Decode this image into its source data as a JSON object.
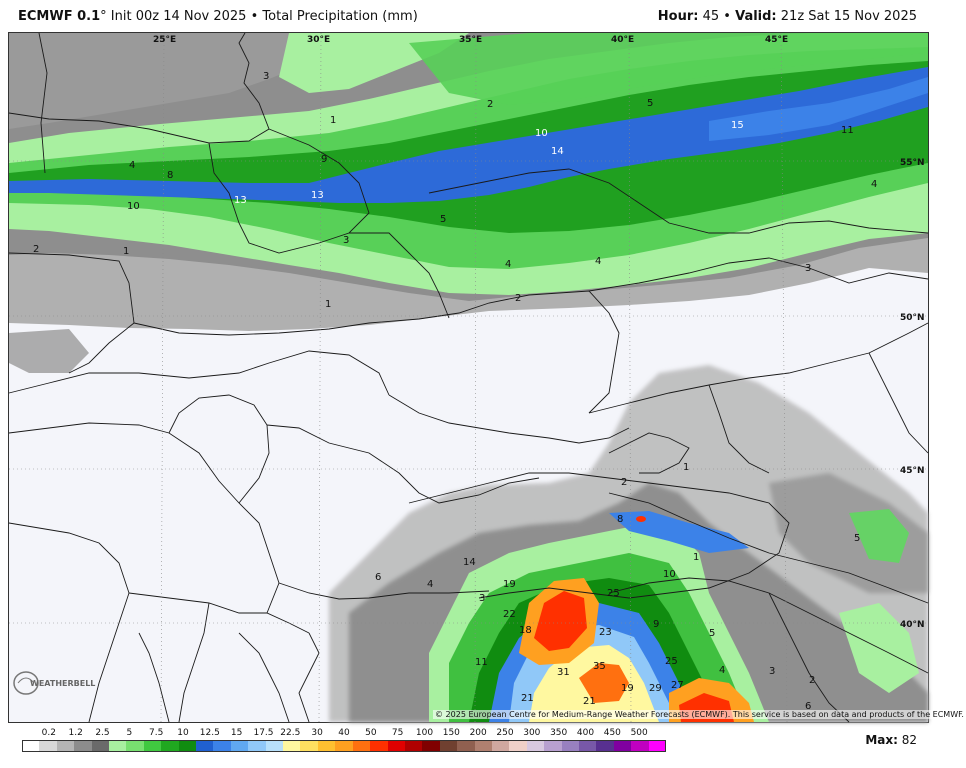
{
  "header": {
    "model": "ECMWF 0.1",
    "degree": "°",
    "init": "Init 00z 14 Nov 2025",
    "sep": "•",
    "field": "Total Precipitation (mm)",
    "hour_label": "Hour:",
    "hour_value": "45",
    "valid_label": "Valid:",
    "valid_value": "21z Sat 15 Nov 2025"
  },
  "lon_labels": [
    "25°E",
    "30°E",
    "35°E",
    "40°E",
    "45°E"
  ],
  "lat_labels": [
    "55°N",
    "50°N",
    "45°N",
    "40°N"
  ],
  "contour_labels": [
    "3",
    "1",
    "4",
    "8",
    "10",
    "13",
    "13",
    "9",
    "10",
    "14",
    "15",
    "11",
    "5",
    "2",
    "5",
    "3",
    "4",
    "4",
    "2",
    "1",
    "2",
    "1",
    "2",
    "1",
    "8",
    "6",
    "4",
    "14",
    "19",
    "3",
    "22",
    "18",
    "25",
    "23",
    "9",
    "5",
    "11",
    "31",
    "35",
    "25",
    "4",
    "3",
    "21",
    "21",
    "19",
    "29",
    "27",
    "6",
    "10",
    "1",
    "4",
    "3",
    "5",
    "2"
  ],
  "credit": "© 2025 European Centre for Medium-Range Weather Forecasts (ECMWF). This service is based on data and products of the ECMWF.",
  "legend": {
    "ticks": [
      "0.2",
      "1.2",
      "2.5",
      "5",
      "7.5",
      "10",
      "12.5",
      "15",
      "17.5",
      "22.5",
      "30",
      "40",
      "50",
      "75",
      "100",
      "150",
      "200",
      "250",
      "300",
      "350",
      "400",
      "450",
      "500"
    ],
    "colors": [
      "#ffffff",
      "#d8d8d8",
      "#b4b4b4",
      "#8c8c8c",
      "#6a6a6a",
      "#a8f0a0",
      "#78e070",
      "#40c840",
      "#20a820",
      "#108c10",
      "#2060d0",
      "#3c82e8",
      "#60a8f0",
      "#90c8f8",
      "#b8e0fa",
      "#fff8a0",
      "#ffe060",
      "#ffc030",
      "#ffa020",
      "#ff7010",
      "#ff3000",
      "#e00000",
      "#b00000",
      "#800000",
      "#704030",
      "#906050",
      "#b08070",
      "#d0a8a0",
      "#f0d0c8",
      "#d8c8e0",
      "#b8a0d0",
      "#9880c0",
      "#7858a8",
      "#583090",
      "#8000a0",
      "#c000c0",
      "#ff00ff"
    ]
  },
  "max_label": "Max:",
  "max_value": "82",
  "logo_text": "WEATHERBELL",
  "colors": {
    "gray1": "#d0d0d0",
    "gray2": "#a8a8a8",
    "gray3": "#8a8a8a",
    "green1": "#a8f0a0",
    "green2": "#60d860",
    "green3": "#20a820",
    "blue": "#2d6ad8",
    "background": "#f4f5fa"
  }
}
